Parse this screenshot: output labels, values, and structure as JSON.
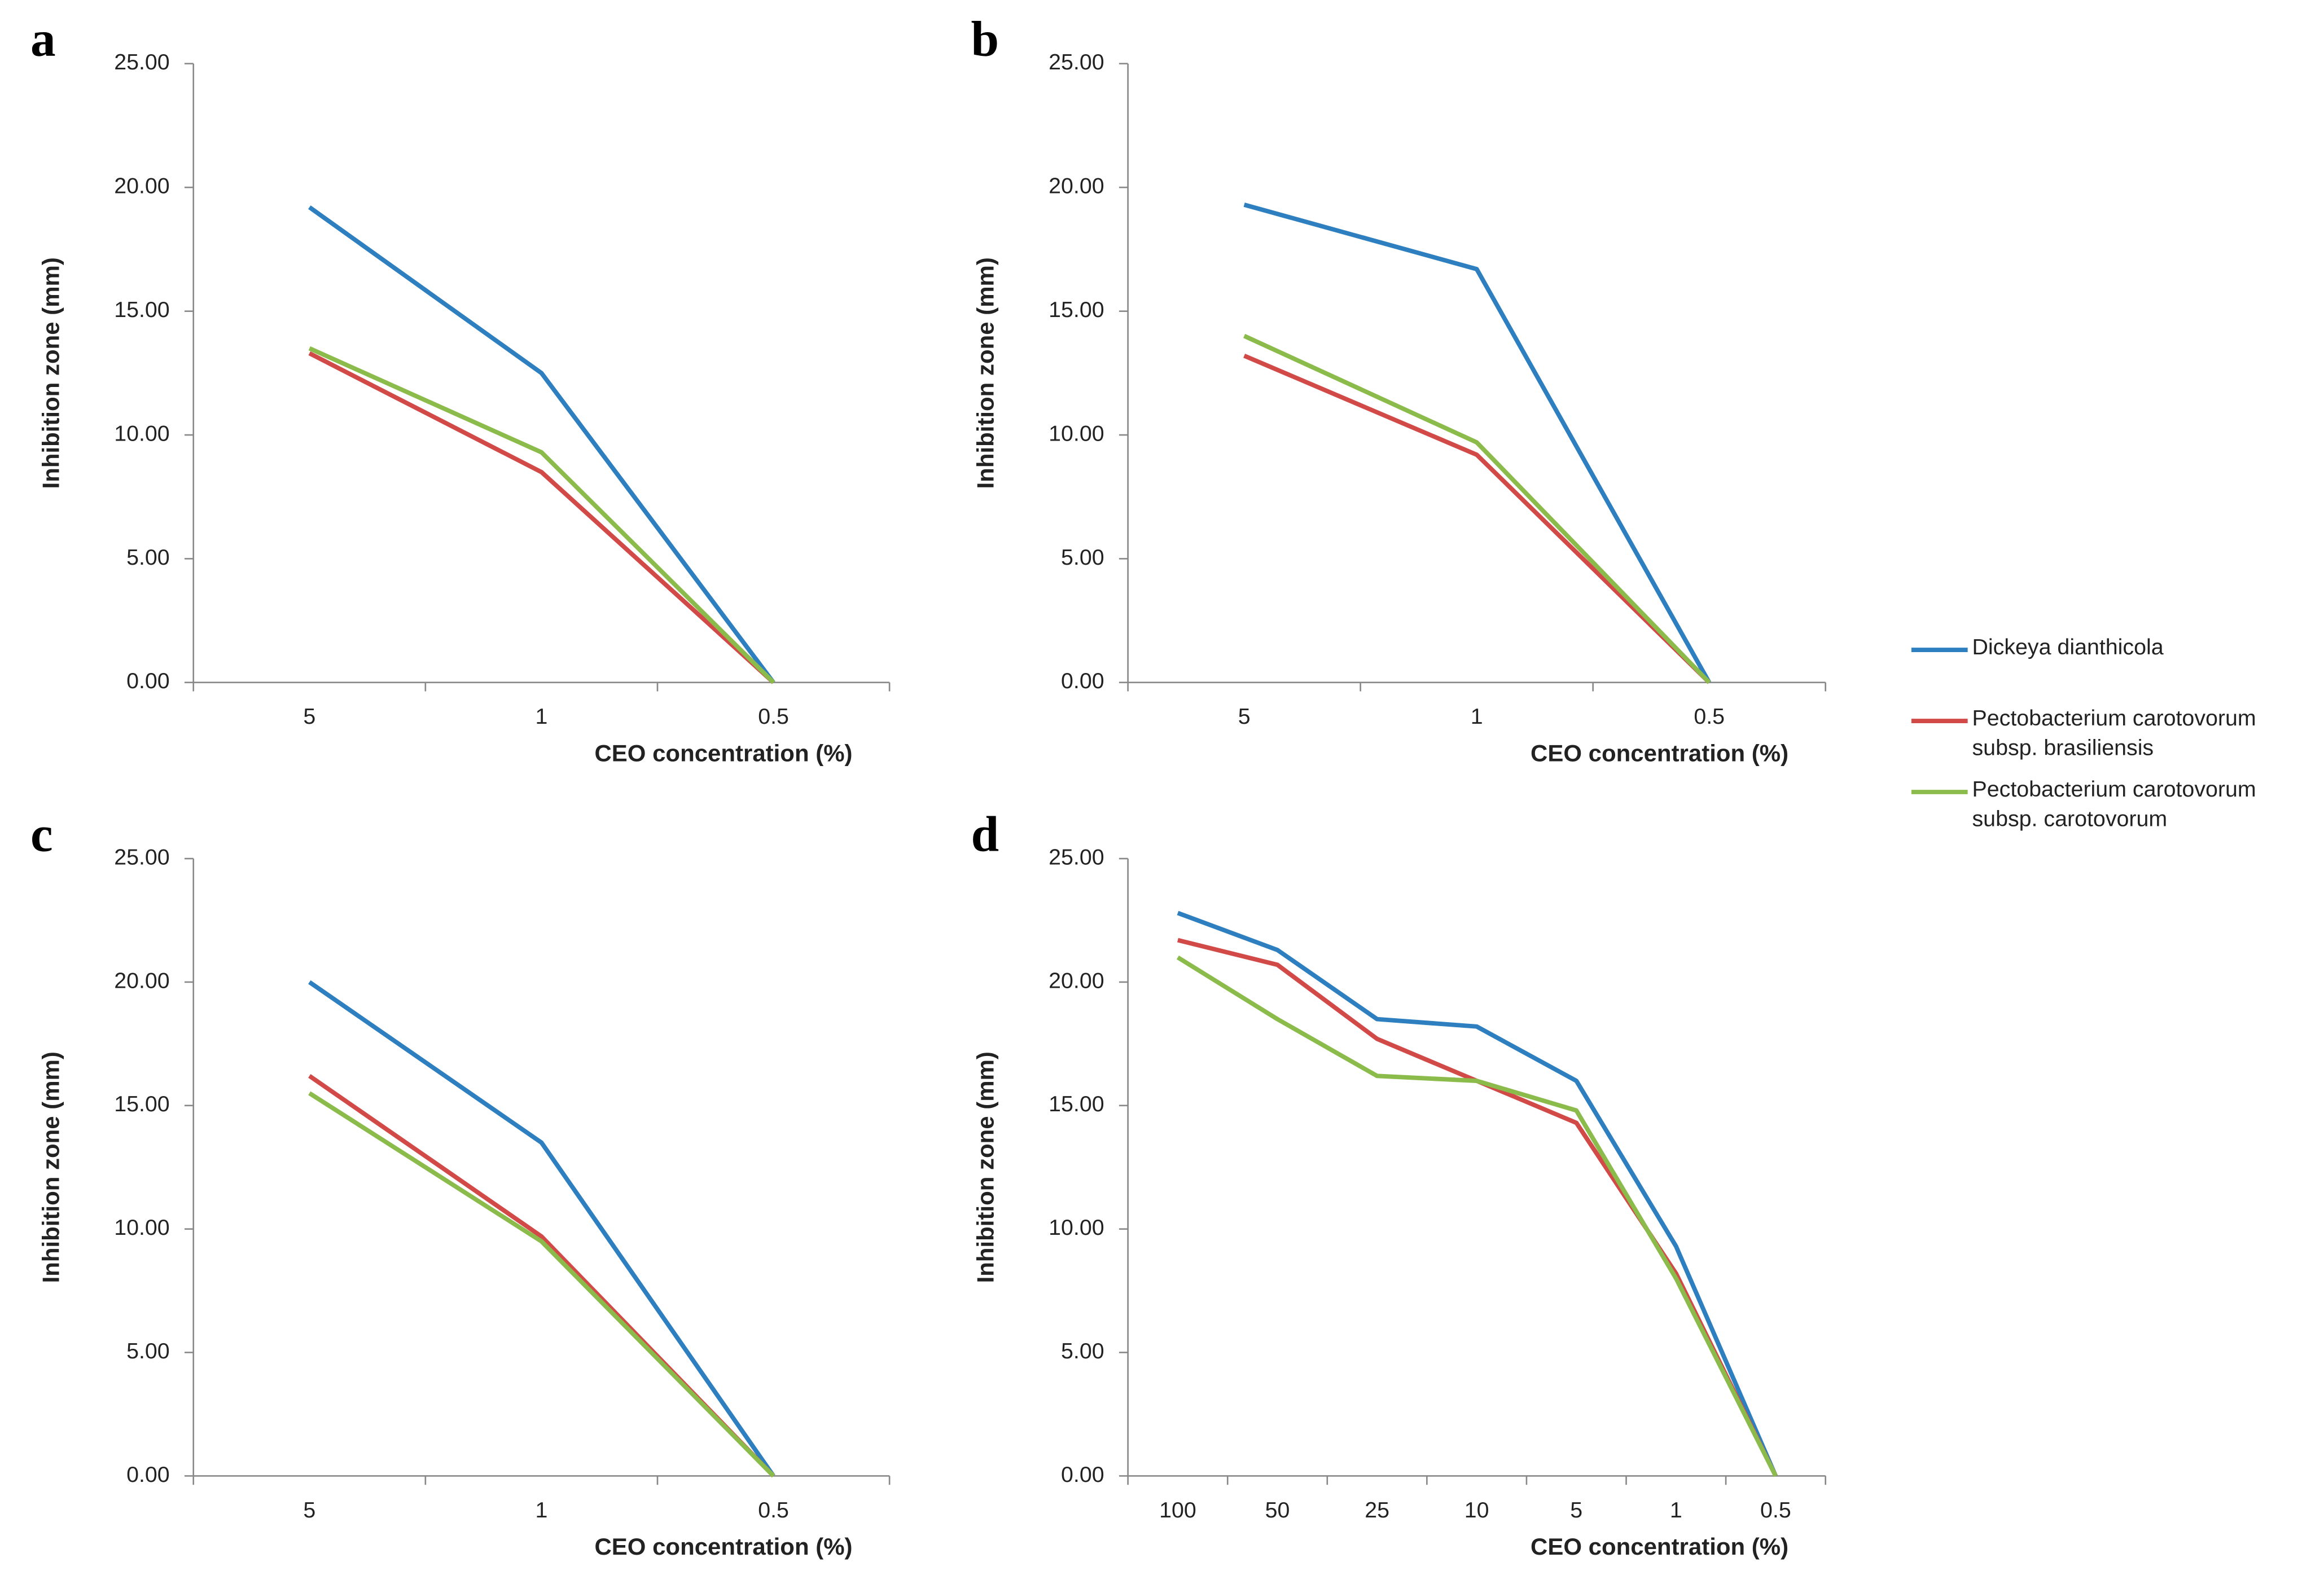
{
  "chart_data": [
    {
      "type": "line",
      "label": "a",
      "xlabel": "CEO concentration (%)",
      "ylabel": "Inhibition zone (mm)",
      "categories": [
        "5",
        "1",
        "0.5"
      ],
      "series": [
        {
          "name": "Dickeya dianthicola",
          "color": "#2e7fc0",
          "values": [
            19.2,
            12.5,
            0
          ]
        },
        {
          "name": "Pectobacterium carotovorum subsp. brasiliensis",
          "color": "#d24a48",
          "values": [
            13.3,
            8.5,
            0
          ]
        },
        {
          "name": "Pectobacterium carotovorum subsp. carotovorum",
          "color": "#8bbb4a",
          "values": [
            13.5,
            9.3,
            0
          ]
        }
      ],
      "ylim": [
        0,
        25
      ],
      "yticks": [
        {
          "value": 0,
          "label": "0.00"
        },
        {
          "value": 5,
          "label": "5.00"
        },
        {
          "value": 10,
          "label": "10.00"
        },
        {
          "value": 15,
          "label": "15.00"
        },
        {
          "value": 20,
          "label": "20.00"
        },
        {
          "value": 25,
          "label": "25.00"
        }
      ]
    },
    {
      "type": "line",
      "label": "b",
      "xlabel": "CEO concentration (%)",
      "ylabel": "Inhibition zone (mm)",
      "categories": [
        "5",
        "1",
        "0.5"
      ],
      "series": [
        {
          "name": "Dickeya dianthicola",
          "color": "#2e7fc0",
          "values": [
            19.3,
            16.7,
            0
          ]
        },
        {
          "name": "Pectobacterium carotovorum subsp. brasiliensis",
          "color": "#d24a48",
          "values": [
            13.2,
            9.2,
            0
          ]
        },
        {
          "name": "Pectobacterium carotovorum subsp. carotovorum",
          "color": "#8bbb4a",
          "values": [
            14.0,
            9.7,
            0
          ]
        }
      ],
      "ylim": [
        0,
        25
      ],
      "yticks": [
        {
          "value": 0,
          "label": "0.00"
        },
        {
          "value": 5,
          "label": "5.00"
        },
        {
          "value": 10,
          "label": "10.00"
        },
        {
          "value": 15,
          "label": "15.00"
        },
        {
          "value": 20,
          "label": "20.00"
        },
        {
          "value": 25,
          "label": "25.00"
        }
      ]
    },
    {
      "type": "line",
      "label": "c",
      "xlabel": "CEO concentration (%)",
      "ylabel": "Inhibition zone (mm)",
      "categories": [
        "5",
        "1",
        "0.5"
      ],
      "series": [
        {
          "name": "Dickeya dianthicola",
          "color": "#2e7fc0",
          "values": [
            20.0,
            13.5,
            0
          ]
        },
        {
          "name": "Pectobacterium carotovorum subsp. brasiliensis",
          "color": "#d24a48",
          "values": [
            16.2,
            9.7,
            0
          ]
        },
        {
          "name": "Pectobacterium carotovorum subsp. carotovorum",
          "color": "#8bbb4a",
          "values": [
            15.5,
            9.5,
            0
          ]
        }
      ],
      "ylim": [
        0,
        25
      ],
      "yticks": [
        {
          "value": 0,
          "label": "0.00"
        },
        {
          "value": 5,
          "label": "5.00"
        },
        {
          "value": 10,
          "label": "10.00"
        },
        {
          "value": 15,
          "label": "15.00"
        },
        {
          "value": 20,
          "label": "20.00"
        },
        {
          "value": 25,
          "label": "25.00"
        }
      ]
    },
    {
      "type": "line",
      "label": "d",
      "xlabel": "CEO concentration (%)",
      "ylabel": "Inhibition zone (mm)",
      "categories": [
        "100",
        "50",
        "25",
        "10",
        "5",
        "1",
        "0.5"
      ],
      "series": [
        {
          "name": "Dickeya dianthicola",
          "color": "#2e7fc0",
          "values": [
            22.8,
            21.3,
            18.5,
            18.2,
            16.0,
            9.3,
            0
          ]
        },
        {
          "name": "Pectobacterium carotovorum subsp. brasiliensis",
          "color": "#d24a48",
          "values": [
            21.7,
            20.7,
            17.7,
            16.0,
            14.3,
            8.2,
            0
          ]
        },
        {
          "name": "Pectobacterium carotovorum subsp. carotovorum",
          "color": "#8bbb4a",
          "values": [
            21.0,
            18.5,
            16.2,
            16.0,
            14.8,
            8.0,
            0
          ]
        }
      ],
      "ylim": [
        0,
        25
      ],
      "yticks": [
        {
          "value": 0,
          "label": "0.00"
        },
        {
          "value": 5,
          "label": "5.00"
        },
        {
          "value": 10,
          "label": "10.00"
        },
        {
          "value": 15,
          "label": "15.00"
        },
        {
          "value": 20,
          "label": "20.00"
        },
        {
          "value": 25,
          "label": "25.00"
        }
      ]
    }
  ]
}
